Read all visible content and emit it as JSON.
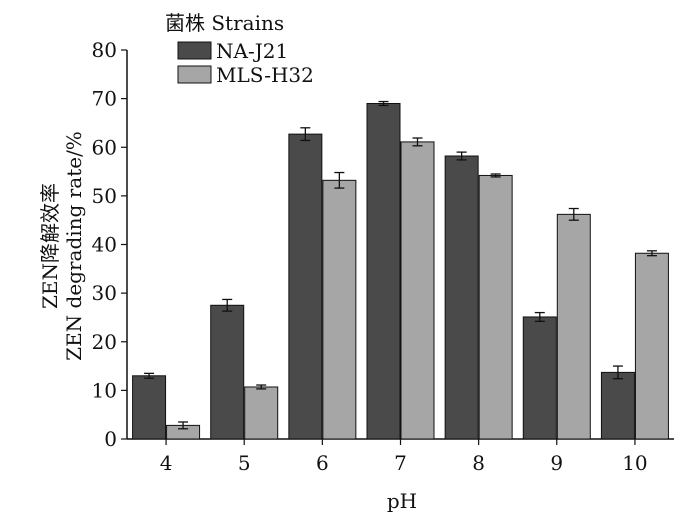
{
  "chart_data": {
    "type": "bar",
    "xlabel": "pH",
    "ylabel_cn": "ZEN降解效率",
    "ylabel_en": "ZEN degrading rate/%",
    "legend_title": "菌株 Strains",
    "legend_position": "top-left",
    "categories": [
      "4",
      "5",
      "6",
      "7",
      "8",
      "9",
      "10"
    ],
    "ylim": [
      0,
      80
    ],
    "yticks": [
      0,
      10,
      20,
      30,
      40,
      50,
      60,
      70,
      80
    ],
    "grid": false,
    "series": [
      {
        "name": "NA-J21",
        "color": "#4a4a4a",
        "values": [
          13.0,
          27.5,
          62.7,
          69.0,
          58.2,
          25.1,
          13.7
        ],
        "errors": [
          0.5,
          1.2,
          1.3,
          0.4,
          0.8,
          0.9,
          1.3
        ]
      },
      {
        "name": "MLS-H32",
        "color": "#a6a6a6",
        "values": [
          2.8,
          10.7,
          53.2,
          61.1,
          54.2,
          46.2,
          38.2
        ],
        "errors": [
          0.7,
          0.4,
          1.6,
          0.8,
          0.3,
          1.2,
          0.5
        ]
      }
    ]
  }
}
